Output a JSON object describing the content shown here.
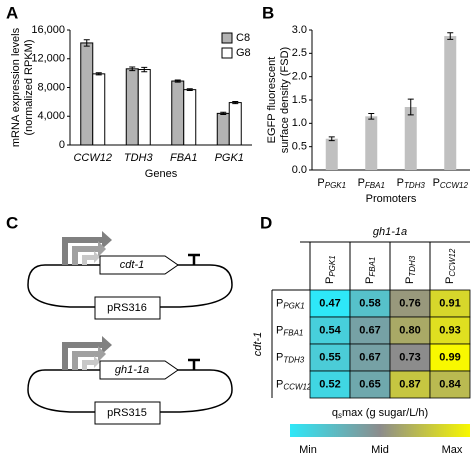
{
  "chart_data": [
    {
      "type": "bar",
      "panel": "A",
      "ylabel": [
        "mRNA expression levels",
        "(normalized RPKM)"
      ],
      "xlabel": "Genes",
      "categories": [
        "CCW12",
        "TDH3",
        "FBA1",
        "PGK1"
      ],
      "series": [
        {
          "name": "C8",
          "color": "#b3b3b3",
          "values": [
            14200,
            10600,
            8900,
            4400
          ],
          "errors": [
            450,
            250,
            150,
            150
          ]
        },
        {
          "name": "G8",
          "color": "#ffffff",
          "values": [
            9900,
            10500,
            7700,
            5900
          ],
          "errors": [
            150,
            300,
            120,
            150
          ]
        }
      ],
      "ylim": [
        0,
        16000
      ],
      "yticks": [
        0,
        {
          "value": 4000,
          "label": "4,000"
        },
        {
          "value": 8000,
          "label": "8,000"
        },
        {
          "value": 12000,
          "label": "12,000"
        },
        {
          "value": 16000,
          "label": "16,000"
        }
      ],
      "legend": "upper right"
    },
    {
      "type": "bar",
      "panel": "B",
      "ylabel": [
        "EGFP fluorescent",
        "surface density (FSD)"
      ],
      "xlabel": "Promoters",
      "categories": [
        "PPGK1",
        "PFBA1",
        "PTDH3",
        "PCCW12"
      ],
      "series": [
        {
          "color": "#c0c0c0",
          "values": [
            0.67,
            1.15,
            1.35,
            2.87
          ],
          "errors": [
            0.04,
            0.06,
            0.17,
            0.07
          ]
        }
      ],
      "ylim": [
        0,
        3.0
      ],
      "yticks": [
        {
          "value": 0,
          "label": "0.0"
        },
        {
          "value": 0.5,
          "label": "0.5"
        },
        {
          "value": 1,
          "label": "1.0"
        },
        {
          "value": 1.5,
          "label": "1.5"
        },
        {
          "value": 2,
          "label": "2.0"
        },
        {
          "value": 2.5,
          "label": "2.5"
        },
        {
          "value": 3,
          "label": "3.0"
        }
      ]
    },
    {
      "type": "heatmap",
      "panel": "D",
      "xlabel": "gh1-1a",
      "ylabel": "cdt-1",
      "x_categories": [
        "PPGK1",
        "PFBA1",
        "PTDH3",
        "PCCW12"
      ],
      "y_categories": [
        "PPGK1",
        "PFBA1",
        "PTDH3",
        "PCCW12"
      ],
      "values": [
        [
          0.47,
          0.58,
          0.76,
          0.91
        ],
        [
          0.54,
          0.67,
          0.8,
          0.93
        ],
        [
          0.55,
          0.67,
          0.73,
          0.99
        ],
        [
          0.52,
          0.65,
          0.87,
          0.84
        ]
      ],
      "value_labels": [
        [
          "0.47",
          "0.58",
          "0.76",
          "0.91"
        ],
        [
          "0.54",
          "0.67",
          "0.80",
          "0.93"
        ],
        [
          "0.55",
          "0.67",
          "0.73",
          "0.99"
        ],
        [
          "0.52",
          "0.65",
          "0.87",
          "0.84"
        ]
      ],
      "colorbar": {
        "label": "qsmax (g sugar/L/h)",
        "colors": [
          "#2ee8f8",
          "#8c8c8c",
          "#f8f800"
        ],
        "ticks": [
          "Min",
          "Mid",
          "Max"
        ]
      }
    }
  ],
  "diagram": {
    "panel": "C",
    "constructs": [
      {
        "gene": "cdt-1",
        "plasmid": "pRS316"
      },
      {
        "gene": "gh1-1a",
        "plasmid": "pRS315"
      }
    ]
  }
}
